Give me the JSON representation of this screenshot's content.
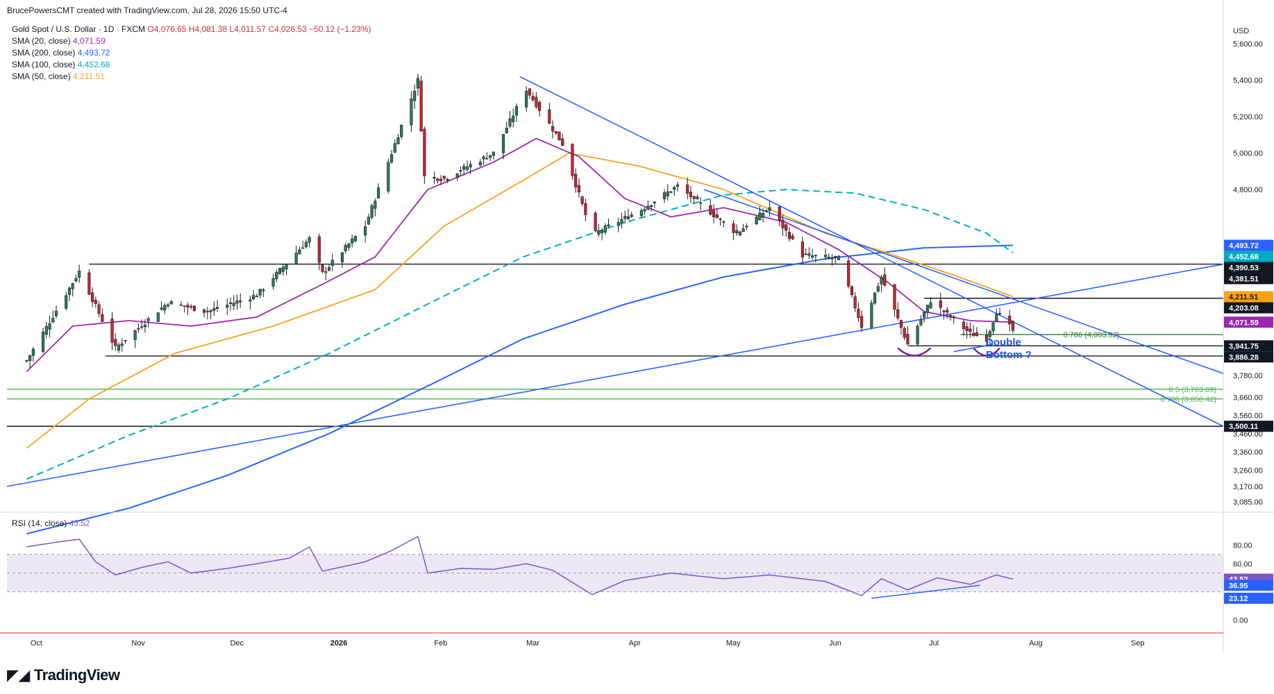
{
  "header": {
    "credit": "BrucePowersCMT created with TradingView.com, Jul 28, 2026 15:50 UTC-4"
  },
  "legend": {
    "title": "Gold Spot / U.S. Dollar · 1D · FXCM",
    "ohlc": {
      "o": "O4,076.65",
      "h": "H4,081.38",
      "l": "L4,011.57",
      "c": "C4,026.53",
      "chg": "−50.12 (−1.23%)"
    },
    "smas": [
      {
        "label": "SMA (20, close)",
        "value": "4,071.59",
        "color": "#9c27b0"
      },
      {
        "label": "SMA (200, close)",
        "value": "4,493.72",
        "color": "#2962ff"
      },
      {
        "label": "SMA (100, close)",
        "value": "4,452.68",
        "color": "#00acc1"
      },
      {
        "label": "SMA (50, close)",
        "value": "4,211.51",
        "color": "#f7a21b"
      }
    ]
  },
  "rsi_legend": {
    "label": "RSI (14, close)",
    "value": "43.52"
  },
  "annotation": {
    "line1": "Double",
    "line2": "Bottom ?"
  },
  "fib_labels": [
    {
      "text": "0.786 (4,003.92)",
      "price": 4003.92,
      "color": "#2e7d32"
    },
    {
      "text": "0.5 (3,703.69)",
      "price": 3703.69,
      "color": "#4caf50"
    },
    {
      "text": "0.786 (3,650.42)",
      "price": 3650.42,
      "color": "#4caf50"
    }
  ],
  "logo": "TradingView",
  "chart_data": {
    "type": "candlestick",
    "currency": "USD",
    "price_axis_ticks": [
      "5,600.00",
      "5,400.00",
      "5,200.00",
      "5,000.00",
      "4,800.00",
      "3,780.00",
      "3,660.00",
      "3,560.00",
      "3,460.00",
      "3,360.00",
      "3,260.00",
      "3,170.00",
      "3,085.00"
    ],
    "price_tick_values": [
      5600,
      5400,
      5200,
      5000,
      4800,
      3780,
      3660,
      3560,
      3460,
      3360,
      3260,
      3170,
      3085
    ],
    "price_badges": [
      {
        "text": "4,493.72",
        "price": 4493.72,
        "bg": "#2962ff",
        "fg": "#ffffff"
      },
      {
        "text": "4,452.68",
        "price": 4452.68,
        "bg": "#00acc1",
        "fg": "#ffffff"
      },
      {
        "text": "4,390.53",
        "price": 4390.53,
        "bg": "#131722",
        "fg": "#ffffff"
      },
      {
        "text": "4,381.51",
        "price": 4381.51,
        "bg": "#131722",
        "fg": "#ffffff"
      },
      {
        "text": "4,211.51",
        "price": 4211.51,
        "bg": "#f7a21b",
        "fg": "#131722"
      },
      {
        "text": "4,203.08",
        "price": 4203.08,
        "bg": "#131722",
        "fg": "#ffffff"
      },
      {
        "text": "4,071.59",
        "price": 4071.59,
        "bg": "#9c27b0",
        "fg": "#ffffff"
      },
      {
        "text": "3,941.75",
        "price": 3941.75,
        "bg": "#131722",
        "fg": "#ffffff"
      },
      {
        "text": "3,886.28",
        "price": 3886.28,
        "bg": "#131722",
        "fg": "#ffffff"
      },
      {
        "text": "3,500.11",
        "price": 3500.11,
        "bg": "#131722",
        "fg": "#ffffff"
      }
    ],
    "horizontal_levels": [
      {
        "price": 4390.53,
        "color": "#131722",
        "start_date": "2025-10-20"
      },
      {
        "price": 4203.08,
        "color": "#131722",
        "start_date": "2026-07-01"
      },
      {
        "price": 3941.75,
        "color": "#131722",
        "start_date": "2026-06-26"
      },
      {
        "price": 3886.28,
        "color": "#131722",
        "start_date": "2025-10-25"
      },
      {
        "price": 3500.11,
        "color": "#131722",
        "start_date": "2025-09-25"
      },
      {
        "price": 4003.92,
        "color": "#2e7d32",
        "start_date": "2026-07-12"
      },
      {
        "price": 3703.69,
        "color": "#4caf50",
        "start_date": "2025-09-25"
      },
      {
        "price": 3650.42,
        "color": "#4caf50",
        "start_date": "2025-09-25"
      }
    ],
    "trendlines": [
      {
        "from": [
          "2026-02-28",
          5420
        ],
        "to": [
          "2026-09-30",
          3500
        ],
        "color": "#2962ff"
      },
      {
        "from": [
          "2026-04-25",
          4800
        ],
        "to": [
          "2026-09-30",
          3790
        ],
        "color": "#2962ff"
      },
      {
        "from": [
          "2025-09-25",
          3170
        ],
        "to": [
          "2026-09-30",
          4390
        ],
        "color": "#2962ff"
      },
      {
        "from": [
          "2026-07-10",
          3910
        ],
        "to": [
          "2026-07-22",
          3950
        ],
        "color": "#2962ff"
      }
    ],
    "time_axis_labels": [
      "Oct",
      "Nov",
      "Dec",
      "2026",
      "Feb",
      "Mar",
      "Apr",
      "May",
      "Jun",
      "Jul",
      "Aug",
      "Sep"
    ],
    "time_axis_dates": [
      "2025-10-01",
      "2025-11-01",
      "2025-12-01",
      "2026-01-01",
      "2026-02-01",
      "2026-03-01",
      "2026-04-01",
      "2026-05-01",
      "2026-06-01",
      "2026-07-01",
      "2026-08-01",
      "2026-09-01"
    ],
    "last": {
      "open": 4076.65,
      "high": 4081.38,
      "low": 4011.57,
      "close": 4026.53
    },
    "key_points": [
      {
        "date": "2025-10-01",
        "close": 3860
      },
      {
        "date": "2025-10-17",
        "close": 4350
      },
      {
        "date": "2025-10-28",
        "close": 3930
      },
      {
        "date": "2025-11-13",
        "close": 4180
      },
      {
        "date": "2025-11-25",
        "close": 4130
      },
      {
        "date": "2025-12-10",
        "close": 4220
      },
      {
        "date": "2025-12-26",
        "close": 4530
      },
      {
        "date": "2025-12-30",
        "close": 4340
      },
      {
        "date": "2026-01-12",
        "close": 4600
      },
      {
        "date": "2026-01-28",
        "close": 5400
      },
      {
        "date": "2026-01-30",
        "close": 4870
      },
      {
        "date": "2026-02-05",
        "close": 4860
      },
      {
        "date": "2026-02-20",
        "close": 5000
      },
      {
        "date": "2026-03-02",
        "close": 5350
      },
      {
        "date": "2026-03-13",
        "close": 5050
      },
      {
        "date": "2026-03-22",
        "close": 4550
      },
      {
        "date": "2026-04-06",
        "close": 4690
      },
      {
        "date": "2026-04-17",
        "close": 4820
      },
      {
        "date": "2026-05-05",
        "close": 4560
      },
      {
        "date": "2026-05-15",
        "close": 4700
      },
      {
        "date": "2026-05-25",
        "close": 4440
      },
      {
        "date": "2026-06-05",
        "close": 4420
      },
      {
        "date": "2026-06-12",
        "close": 4050
      },
      {
        "date": "2026-06-18",
        "close": 4320
      },
      {
        "date": "2026-06-26",
        "close": 3950
      },
      {
        "date": "2026-07-03",
        "close": 4190
      },
      {
        "date": "2026-07-15",
        "close": 4010
      },
      {
        "date": "2026-07-20",
        "close": 3980
      },
      {
        "date": "2026-07-23",
        "close": 4130
      },
      {
        "date": "2026-07-28",
        "close": 4026.53
      }
    ],
    "sma20_points": [
      [
        "2025-10-01",
        3800
      ],
      [
        "2025-10-15",
        4050
      ],
      [
        "2025-11-01",
        4080
      ],
      [
        "2025-11-20",
        4050
      ],
      [
        "2025-12-10",
        4100
      ],
      [
        "2025-12-30",
        4280
      ],
      [
        "2026-01-15",
        4430
      ],
      [
        "2026-01-31",
        4800
      ],
      [
        "2026-02-20",
        4950
      ],
      [
        "2026-03-05",
        5080
      ],
      [
        "2026-03-18",
        4980
      ],
      [
        "2026-04-01",
        4750
      ],
      [
        "2026-04-15",
        4650
      ],
      [
        "2026-05-01",
        4700
      ],
      [
        "2026-05-20",
        4620
      ],
      [
        "2026-06-05",
        4470
      ],
      [
        "2026-06-20",
        4290
      ],
      [
        "2026-07-01",
        4130
      ],
      [
        "2026-07-15",
        4080
      ],
      [
        "2026-07-28",
        4071.59
      ]
    ],
    "sma50_points": [
      [
        "2025-10-01",
        3380
      ],
      [
        "2025-10-20",
        3650
      ],
      [
        "2025-11-15",
        3900
      ],
      [
        "2025-12-15",
        4050
      ],
      [
        "2026-01-15",
        4250
      ],
      [
        "2026-02-05",
        4600
      ],
      [
        "2026-03-01",
        4850
      ],
      [
        "2026-03-15",
        5000
      ],
      [
        "2026-04-05",
        4930
      ],
      [
        "2026-05-01",
        4800
      ],
      [
        "2026-06-01",
        4560
      ],
      [
        "2026-06-20",
        4450
      ],
      [
        "2026-07-10",
        4330
      ],
      [
        "2026-07-28",
        4211.51
      ]
    ],
    "sma100_points": [
      [
        "2025-10-01",
        3210
      ],
      [
        "2025-11-01",
        3450
      ],
      [
        "2025-12-01",
        3650
      ],
      [
        "2026-01-01",
        3900
      ],
      [
        "2026-02-01",
        4180
      ],
      [
        "2026-03-01",
        4430
      ],
      [
        "2026-04-01",
        4620
      ],
      [
        "2026-05-01",
        4770
      ],
      [
        "2026-05-20",
        4800
      ],
      [
        "2026-06-10",
        4780
      ],
      [
        "2026-07-01",
        4690
      ],
      [
        "2026-07-20",
        4560
      ],
      [
        "2026-07-28",
        4452.68
      ]
    ],
    "sma200_points": [
      [
        "2025-10-01",
        2910
      ],
      [
        "2025-11-01",
        3050
      ],
      [
        "2025-12-01",
        3230
      ],
      [
        "2026-01-01",
        3460
      ],
      [
        "2026-02-01",
        3730
      ],
      [
        "2026-03-01",
        3980
      ],
      [
        "2026-04-01",
        4170
      ],
      [
        "2026-05-01",
        4320
      ],
      [
        "2026-06-01",
        4420
      ],
      [
        "2026-07-01",
        4480
      ],
      [
        "2026-07-28",
        4493.72
      ]
    ],
    "rsi": {
      "ticks": [
        "80.00",
        "60.00",
        "23.12",
        "0.00"
      ],
      "tick_values": [
        80,
        60,
        23.12,
        0
      ],
      "upper": 70,
      "lower": 30,
      "mid": 50,
      "badges": [
        {
          "text": "43.52",
          "value": 43.52,
          "bg": "#7e57c2",
          "fg": "#ffffff"
        },
        {
          "text": "36.95",
          "value": 36.95,
          "bg": "#2962ff",
          "fg": "#ffffff"
        },
        {
          "text": "23.12",
          "value": 23.12,
          "bg": "#2962ff",
          "fg": "#ffffff"
        }
      ],
      "points": [
        [
          "2025-10-01",
          78
        ],
        [
          "2025-10-10",
          83
        ],
        [
          "2025-10-17",
          86
        ],
        [
          "2025-10-22",
          62
        ],
        [
          "2025-10-28",
          48
        ],
        [
          "2025-11-05",
          56
        ],
        [
          "2025-11-13",
          62
        ],
        [
          "2025-11-20",
          50
        ],
        [
          "2025-12-01",
          55
        ],
        [
          "2025-12-10",
          60
        ],
        [
          "2025-12-20",
          66
        ],
        [
          "2025-12-26",
          78
        ],
        [
          "2025-12-30",
          52
        ],
        [
          "2026-01-12",
          62
        ],
        [
          "2026-01-20",
          74
        ],
        [
          "2026-01-28",
          89
        ],
        [
          "2026-01-31",
          50
        ],
        [
          "2026-02-10",
          55
        ],
        [
          "2026-02-20",
          54
        ],
        [
          "2026-03-02",
          60
        ],
        [
          "2026-03-10",
          53
        ],
        [
          "2026-03-22",
          27
        ],
        [
          "2026-04-01",
          42
        ],
        [
          "2026-04-15",
          50
        ],
        [
          "2026-05-01",
          44
        ],
        [
          "2026-05-15",
          48
        ],
        [
          "2026-06-01",
          41
        ],
        [
          "2026-06-12",
          26
        ],
        [
          "2026-06-18",
          44
        ],
        [
          "2026-06-26",
          32
        ],
        [
          "2026-07-05",
          45
        ],
        [
          "2026-07-15",
          38
        ],
        [
          "2026-07-23",
          48
        ],
        [
          "2026-07-28",
          43.52
        ]
      ],
      "divergence": {
        "from": [
          "2026-06-15",
          23.12
        ],
        "to": [
          "2026-07-18",
          36.95
        ]
      }
    }
  }
}
